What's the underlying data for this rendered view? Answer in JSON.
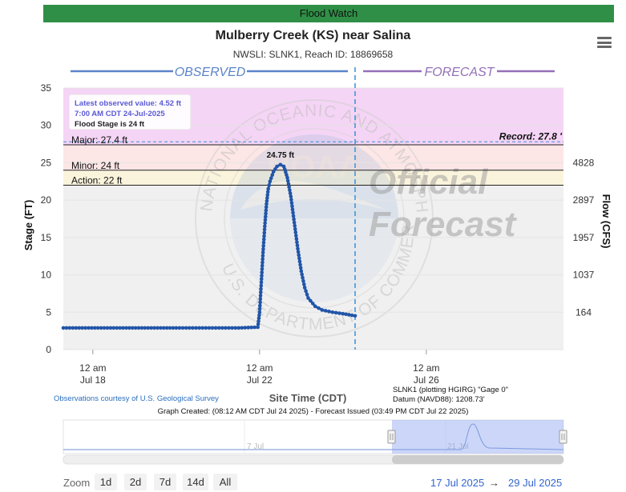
{
  "banner": {
    "text": "Flood Watch",
    "color": "#2f8f46"
  },
  "header": {
    "title": "Mulberry Creek (KS) near Salina",
    "subtitle": "NWSLI: SLNK1, Reach ID: 18869658"
  },
  "menu_icon": "hamburger-menu-icon",
  "chart_data": {
    "type": "line",
    "ylabel": "Stage (FT)",
    "y2label": "Flow (CFS)",
    "xlabel": "Site Time (CDT)",
    "ylim": [
      0,
      35
    ],
    "yticks": [
      0,
      5,
      10,
      15,
      20,
      25,
      30,
      35
    ],
    "flow_ticks": [
      {
        "stage": 5,
        "label": "164"
      },
      {
        "stage": 10,
        "label": "1037"
      },
      {
        "stage": 15,
        "label": "1957"
      },
      {
        "stage": 20,
        "label": "2897"
      },
      {
        "stage": 25,
        "label": "4828"
      }
    ],
    "xlim": [
      "2025-07-17T07:00",
      "2025-07-29T07:00"
    ],
    "xticks": [
      {
        "x": "2025-07-18T00:00",
        "line1": "12 am",
        "line2": "Jul 18"
      },
      {
        "x": "2025-07-22T00:00",
        "line1": "12 am",
        "line2": "Jul 22"
      },
      {
        "x": "2025-07-26T00:00",
        "line1": "12 am",
        "line2": "Jul 26"
      }
    ],
    "observed_label": "OBSERVED",
    "forecast_label": "FORECAST",
    "divider_time": "2025-07-24T07:00",
    "thresholds": [
      {
        "name": "Major",
        "label": "Major: 27.4 ft",
        "value": 27.4
      },
      {
        "name": "Minor",
        "label": "Minor: 24 ft",
        "value": 24
      },
      {
        "name": "Action",
        "label": "Action: 22 ft",
        "value": 22
      }
    ],
    "record": {
      "label": "Record: 27.8 '",
      "value": 27.8
    },
    "peak": {
      "label": "24.75 ft",
      "x": "2025-07-22T12:00",
      "value": 24.75
    },
    "tooltip": {
      "line1": "Latest observed value: 4.52 ft",
      "line2": "7:00 AM CDT 24-Jul-2025",
      "line3": "Flood Stage is 24 ft"
    },
    "series": [
      {
        "values": [
          {
            "x": "2025-07-17T07:00",
            "y": 2.9
          },
          {
            "x": "2025-07-18T12:00",
            "y": 2.9
          },
          {
            "x": "2025-07-20T00:00",
            "y": 2.9
          },
          {
            "x": "2025-07-21T12:00",
            "y": 2.9
          },
          {
            "x": "2025-07-21T23:00",
            "y": 3.0
          },
          {
            "x": "2025-07-22T00:00",
            "y": 5.0
          },
          {
            "x": "2025-07-22T01:00",
            "y": 9.0
          },
          {
            "x": "2025-07-22T02:00",
            "y": 13.0
          },
          {
            "x": "2025-07-22T03:00",
            "y": 16.5
          },
          {
            "x": "2025-07-22T04:00",
            "y": 19.5
          },
          {
            "x": "2025-07-22T05:00",
            "y": 21.5
          },
          {
            "x": "2025-07-22T06:00",
            "y": 22.5
          },
          {
            "x": "2025-07-22T08:00",
            "y": 23.8
          },
          {
            "x": "2025-07-22T10:00",
            "y": 24.5
          },
          {
            "x": "2025-07-22T12:00",
            "y": 24.75
          },
          {
            "x": "2025-07-22T14:00",
            "y": 24.5
          },
          {
            "x": "2025-07-22T16:00",
            "y": 23.0
          },
          {
            "x": "2025-07-22T18:00",
            "y": 20.5
          },
          {
            "x": "2025-07-22T20:00",
            "y": 17.0
          },
          {
            "x": "2025-07-22T22:00",
            "y": 13.5
          },
          {
            "x": "2025-07-23T00:00",
            "y": 10.5
          },
          {
            "x": "2025-07-23T02:00",
            "y": 8.3
          },
          {
            "x": "2025-07-23T04:00",
            "y": 6.9
          },
          {
            "x": "2025-07-23T08:00",
            "y": 5.8
          },
          {
            "x": "2025-07-23T12:00",
            "y": 5.3
          },
          {
            "x": "2025-07-23T18:00",
            "y": 5.0
          },
          {
            "x": "2025-07-24T00:00",
            "y": 4.8
          },
          {
            "x": "2025-07-24T07:00",
            "y": 4.52
          }
        ]
      }
    ],
    "colors": {
      "line": "#2155a8",
      "observed": "#5b83c9",
      "forecast": "#9370b8",
      "divider": "#3a8fd6",
      "action_band": "#fbf4dc",
      "minor_band": "#fde6e6",
      "major_band": "#f5d5f5"
    }
  },
  "watermark": {
    "emblem_lines": [
      "NATIONAL OCEANIC AND ATMOSPHERIC ADMINISTRATION",
      "U.S. DEPARTMENT OF COMMERCE",
      "NOAA"
    ],
    "stamp_line1": "Official",
    "stamp_line2": "Forecast"
  },
  "credits": {
    "observations": "Observations courtesy of U.S. Geological Survey",
    "plotting_line1": "SLNK1 (plotting HGIRG) \"Gage 0\"",
    "plotting_line2": "Datum (NAVD88): 1208.73'",
    "graph_created": "Graph Created: (08:12 AM CDT Jul 24 2025) - Forecast Issued (03:49 PM CDT Jul 22 2025)"
  },
  "navigator": {
    "labels": [
      "7 Jul",
      "21 Jul"
    ]
  },
  "zoom": {
    "label": "Zoom",
    "buttons": [
      "1d",
      "2d",
      "7d",
      "14d",
      "All"
    ]
  },
  "range": {
    "from": "17 Jul 2025",
    "arrow": "→",
    "to": "29 Jul 2025"
  }
}
